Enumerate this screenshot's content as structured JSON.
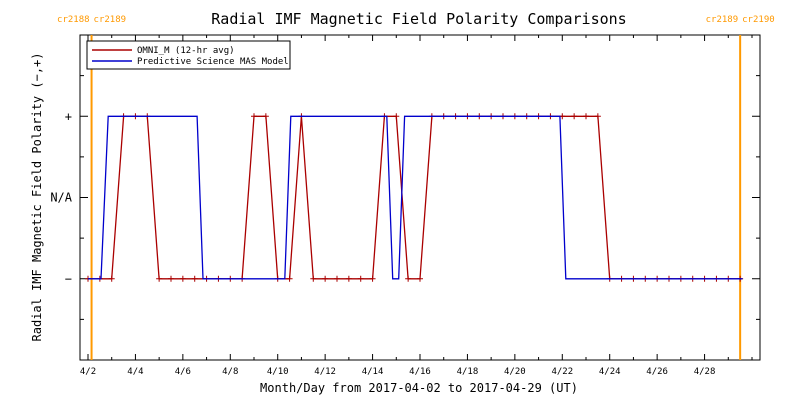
{
  "chart_data": {
    "type": "line",
    "title": "Radial IMF Magnetic Field Polarity Comparisons",
    "xlabel": "Month/Day from 2017-04-02 to 2017-04-29 (UT)",
    "ylabel": "Radial IMF Magnetic Field Polarity (−,+)",
    "x_unit": "days since 2017-04-02 00:00 UT",
    "xlim": [
      0,
      28
    ],
    "ylim": [
      -2,
      2
    ],
    "x_ticks": [
      {
        "x": 0,
        "label": "4/2"
      },
      {
        "x": 2,
        "label": "4/4"
      },
      {
        "x": 4,
        "label": "4/6"
      },
      {
        "x": 6,
        "label": "4/8"
      },
      {
        "x": 8,
        "label": "4/10"
      },
      {
        "x": 10,
        "label": "4/12"
      },
      {
        "x": 12,
        "label": "4/14"
      },
      {
        "x": 14,
        "label": "4/16"
      },
      {
        "x": 16,
        "label": "4/18"
      },
      {
        "x": 18,
        "label": "4/20"
      },
      {
        "x": 20,
        "label": "4/22"
      },
      {
        "x": 22,
        "label": "4/24"
      },
      {
        "x": 24,
        "label": "4/26"
      },
      {
        "x": 26,
        "label": "4/28"
      }
    ],
    "y_ticks": [
      {
        "y": 1,
        "label": "+"
      },
      {
        "y": 0,
        "label": "N/A"
      },
      {
        "y": -1,
        "label": "−"
      }
    ],
    "carrington_markers": [
      {
        "x": 0.15,
        "label_left": "cr2188",
        "label_right": "cr2189",
        "color": "#ff9900"
      },
      {
        "x": 27.5,
        "label_left": "cr2189",
        "label_right": "cr2190",
        "color": "#ff9900"
      }
    ],
    "legend": {
      "placement": "top-left",
      "entries": [
        {
          "label": "OMNI_M (12-hr avg)",
          "color": "#aa0000"
        },
        {
          "label": "Predictive Science MAS Model",
          "color": "#0000cc"
        }
      ]
    },
    "series": [
      {
        "name": "OMNI_M (12-hr avg)",
        "color": "#aa0000",
        "marker": "plus",
        "x": [
          0,
          0.5,
          1.0,
          1.5,
          2.0,
          2.5,
          3.0,
          3.5,
          4.0,
          4.5,
          5.0,
          5.5,
          6.0,
          6.5,
          7.0,
          7.5,
          8.0,
          8.5,
          9.0,
          9.5,
          10.0,
          10.5,
          11.0,
          11.5,
          12.0,
          12.5,
          13.0,
          13.5,
          14.0,
          14.5,
          15.0,
          15.5,
          16.0,
          16.5,
          17.0,
          17.5,
          18.0,
          18.5,
          19.0,
          19.5,
          20.0,
          20.5,
          21.0,
          21.5,
          22.0,
          22.5,
          23.0,
          23.5,
          24.0,
          24.5,
          25.0,
          25.5,
          26.0,
          26.5,
          27.0,
          27.5
        ],
        "y": [
          -1,
          -1,
          -1,
          1,
          1,
          1,
          -1,
          -1,
          -1,
          -1,
          -1,
          -1,
          -1,
          -1,
          1,
          1,
          -1,
          -1,
          1,
          -1,
          -1,
          -1,
          -1,
          -1,
          -1,
          1,
          1,
          -1,
          -1,
          1,
          1,
          1,
          1,
          1,
          1,
          1,
          1,
          1,
          1,
          1,
          1,
          1,
          1,
          1,
          -1,
          -1,
          -1,
          -1,
          -1,
          -1,
          -1,
          -1,
          -1,
          -1,
          -1,
          -1
        ]
      },
      {
        "name": "Predictive Science MAS Model",
        "color": "#0000cc",
        "marker": "none",
        "x": [
          0,
          0.55,
          0.85,
          4.6,
          4.85,
          8.3,
          8.55,
          12.6,
          12.85,
          13.1,
          13.35,
          19.9,
          20.15,
          27.6
        ],
        "y": [
          -1,
          -1,
          1,
          1,
          -1,
          -1,
          1,
          1,
          -1,
          -1,
          1,
          1,
          -1,
          -1
        ]
      }
    ]
  }
}
